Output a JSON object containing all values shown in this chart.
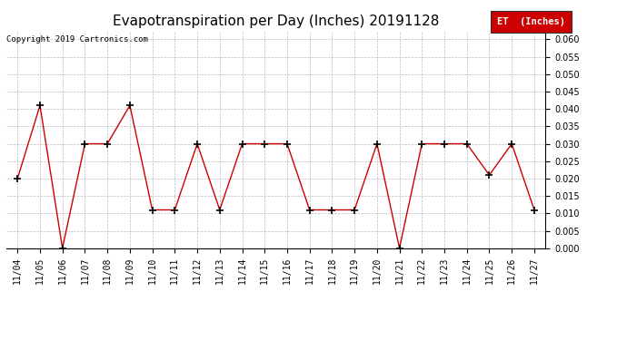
{
  "title": "Evapotranspiration per Day (Inches) 20191128",
  "copyright": "Copyright 2019 Cartronics.com",
  "legend_label": "ET  (Inches)",
  "x_labels": [
    "11/04",
    "11/05",
    "11/06",
    "11/07",
    "11/08",
    "11/09",
    "11/10",
    "11/11",
    "11/12",
    "11/13",
    "11/14",
    "11/15",
    "11/16",
    "11/17",
    "11/18",
    "11/19",
    "11/20",
    "11/21",
    "11/22",
    "11/23",
    "11/24",
    "11/25",
    "11/26",
    "11/27"
  ],
  "y_values": [
    0.02,
    0.041,
    0.0,
    0.03,
    0.03,
    0.041,
    0.011,
    0.011,
    0.03,
    0.011,
    0.03,
    0.03,
    0.03,
    0.011,
    0.011,
    0.011,
    0.03,
    0.0,
    0.03,
    0.03,
    0.03,
    0.021,
    0.03,
    0.011
  ],
  "line_color": "#cc0000",
  "marker_color": "#000000",
  "marker": "+",
  "ylim": [
    0.0,
    0.0625
  ],
  "yticks": [
    0.0,
    0.005,
    0.01,
    0.015,
    0.02,
    0.025,
    0.03,
    0.035,
    0.04,
    0.045,
    0.05,
    0.055,
    0.06
  ],
  "background_color": "#ffffff",
  "grid_color": "#bbbbbb",
  "title_fontsize": 11,
  "copyright_fontsize": 6.5,
  "tick_fontsize": 7,
  "legend_bg": "#cc0000",
  "legend_text_color": "#ffffff",
  "legend_fontsize": 7.5
}
